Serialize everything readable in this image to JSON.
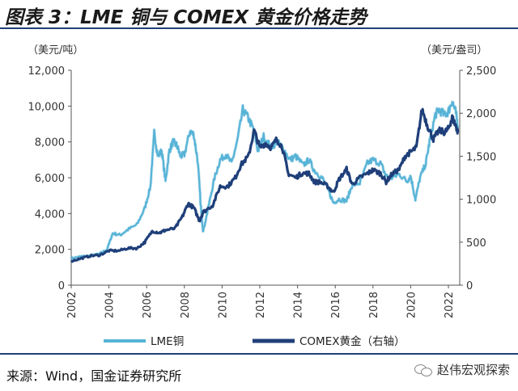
{
  "figure": {
    "title": "图表 3：LME 铜与 COMEX 黄金价格走势",
    "source": "来源：Wind，国金证券研究所",
    "watermark": "赵伟宏观探索"
  },
  "chart_data": {
    "type": "line",
    "left_axis": {
      "unit": "（美元/吨）",
      "ylim": [
        0,
        12000
      ],
      "ticks": [
        "0",
        "2,000",
        "4,000",
        "6,000",
        "8,000",
        "10,000",
        "12,000"
      ]
    },
    "right_axis": {
      "unit": "（美元/盎司）",
      "ylim": [
        0,
        2500
      ],
      "ticks": [
        "0",
        "500",
        "1,000",
        "1,500",
        "2,000",
        "2,500"
      ]
    },
    "x_axis": {
      "xlim": [
        2002,
        2022.6
      ],
      "ticks": [
        "2002",
        "2004",
        "2006",
        "2008",
        "2010",
        "2012",
        "2014",
        "2016",
        "2018",
        "2020",
        "2022"
      ]
    },
    "colors": {
      "copper": "#56b3d6",
      "gold": "#1f3f7a"
    },
    "series": [
      {
        "name": "LME铜",
        "axis": "left",
        "points": [
          [
            2002.0,
            1500
          ],
          [
            2002.5,
            1600
          ],
          [
            2003.0,
            1650
          ],
          [
            2003.5,
            1750
          ],
          [
            2003.9,
            2000
          ],
          [
            2004.2,
            2900
          ],
          [
            2004.6,
            2800
          ],
          [
            2005.0,
            3100
          ],
          [
            2005.5,
            3400
          ],
          [
            2005.9,
            4300
          ],
          [
            2006.2,
            5500
          ],
          [
            2006.4,
            8500
          ],
          [
            2006.6,
            7200
          ],
          [
            2006.8,
            7500
          ],
          [
            2007.0,
            5800
          ],
          [
            2007.2,
            7500
          ],
          [
            2007.4,
            8000
          ],
          [
            2007.6,
            7800
          ],
          [
            2007.8,
            7200
          ],
          [
            2008.0,
            7300
          ],
          [
            2008.3,
            8600
          ],
          [
            2008.5,
            8400
          ],
          [
            2008.7,
            7000
          ],
          [
            2008.9,
            4000
          ],
          [
            2009.0,
            3000
          ],
          [
            2009.3,
            4500
          ],
          [
            2009.6,
            6000
          ],
          [
            2009.9,
            7000
          ],
          [
            2010.2,
            7300
          ],
          [
            2010.5,
            6800
          ],
          [
            2010.8,
            8000
          ],
          [
            2011.1,
            9800
          ],
          [
            2011.4,
            9300
          ],
          [
            2011.7,
            8600
          ],
          [
            2011.9,
            7500
          ],
          [
            2012.2,
            8300
          ],
          [
            2012.6,
            7700
          ],
          [
            2012.9,
            8000
          ],
          [
            2013.2,
            7700
          ],
          [
            2013.6,
            7000
          ],
          [
            2013.9,
            7200
          ],
          [
            2014.3,
            6700
          ],
          [
            2014.6,
            7000
          ],
          [
            2014.9,
            6400
          ],
          [
            2015.3,
            6000
          ],
          [
            2015.6,
            5400
          ],
          [
            2015.9,
            4600
          ],
          [
            2016.2,
            4800
          ],
          [
            2016.6,
            4700
          ],
          [
            2016.9,
            5600
          ],
          [
            2017.3,
            5700
          ],
          [
            2017.7,
            6800
          ],
          [
            2018.0,
            7000
          ],
          [
            2018.4,
            6800
          ],
          [
            2018.7,
            6100
          ],
          [
            2019.0,
            6000
          ],
          [
            2019.4,
            6200
          ],
          [
            2019.8,
            5800
          ],
          [
            2020.0,
            6100
          ],
          [
            2020.25,
            4800
          ],
          [
            2020.5,
            6000
          ],
          [
            2020.8,
            6800
          ],
          [
            2021.0,
            8000
          ],
          [
            2021.3,
            9500
          ],
          [
            2021.5,
            9800
          ],
          [
            2021.8,
            9500
          ],
          [
            2022.0,
            9700
          ],
          [
            2022.2,
            10300
          ],
          [
            2022.4,
            9600
          ],
          [
            2022.5,
            8900
          ]
        ]
      },
      {
        "name": "COMEX黄金（右轴）",
        "axis": "right",
        "points": [
          [
            2002.0,
            280
          ],
          [
            2002.5,
            310
          ],
          [
            2003.0,
            340
          ],
          [
            2003.5,
            350
          ],
          [
            2004.0,
            400
          ],
          [
            2004.5,
            400
          ],
          [
            2005.0,
            430
          ],
          [
            2005.5,
            430
          ],
          [
            2005.9,
            500
          ],
          [
            2006.3,
            630
          ],
          [
            2006.7,
            610
          ],
          [
            2007.0,
            640
          ],
          [
            2007.5,
            660
          ],
          [
            2007.9,
            800
          ],
          [
            2008.2,
            950
          ],
          [
            2008.5,
            900
          ],
          [
            2008.8,
            750
          ],
          [
            2009.0,
            850
          ],
          [
            2009.5,
            930
          ],
          [
            2009.9,
            1150
          ],
          [
            2010.3,
            1150
          ],
          [
            2010.7,
            1250
          ],
          [
            2011.0,
            1400
          ],
          [
            2011.4,
            1500
          ],
          [
            2011.7,
            1800
          ],
          [
            2012.0,
            1600
          ],
          [
            2012.3,
            1650
          ],
          [
            2012.6,
            1600
          ],
          [
            2012.9,
            1700
          ],
          [
            2013.2,
            1600
          ],
          [
            2013.5,
            1300
          ],
          [
            2013.9,
            1250
          ],
          [
            2014.2,
            1300
          ],
          [
            2014.6,
            1300
          ],
          [
            2014.9,
            1200
          ],
          [
            2015.2,
            1200
          ],
          [
            2015.6,
            1150
          ],
          [
            2015.9,
            1080
          ],
          [
            2016.2,
            1230
          ],
          [
            2016.6,
            1350
          ],
          [
            2016.9,
            1170
          ],
          [
            2017.3,
            1250
          ],
          [
            2017.7,
            1300
          ],
          [
            2018.0,
            1340
          ],
          [
            2018.4,
            1300
          ],
          [
            2018.7,
            1200
          ],
          [
            2019.0,
            1290
          ],
          [
            2019.4,
            1350
          ],
          [
            2019.7,
            1500
          ],
          [
            2020.0,
            1550
          ],
          [
            2020.3,
            1600
          ],
          [
            2020.6,
            2050
          ],
          [
            2020.9,
            1850
          ],
          [
            2021.2,
            1700
          ],
          [
            2021.5,
            1800
          ],
          [
            2021.8,
            1780
          ],
          [
            2022.0,
            1820
          ],
          [
            2022.2,
            1950
          ],
          [
            2022.4,
            1850
          ],
          [
            2022.5,
            1780
          ]
        ]
      }
    ],
    "legend": {
      "position": "bottom",
      "items": [
        "LME铜",
        "COMEX黄金（右轴）"
      ]
    }
  }
}
